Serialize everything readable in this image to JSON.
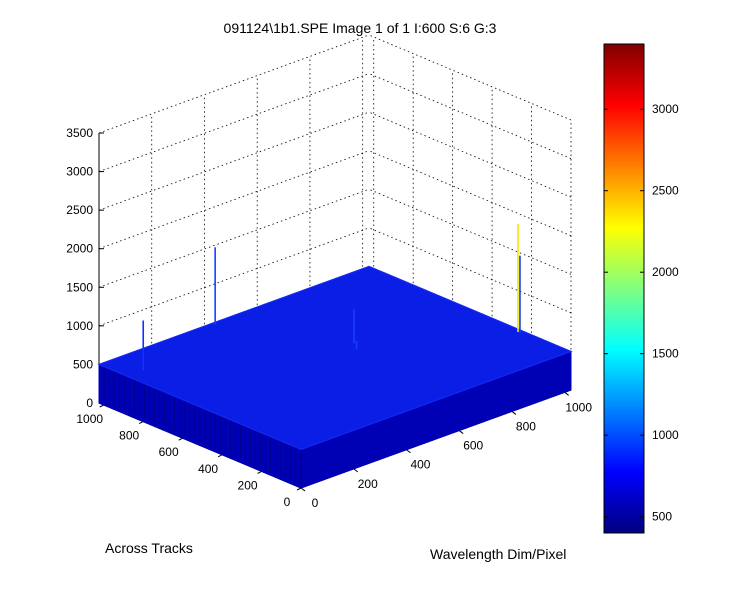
{
  "figure": {
    "background": "#ffffff"
  },
  "chart_data": {
    "type": "surface",
    "title": "091124\\1b1.SPE  Image 1 of 1  I:600  S:6  G:3",
    "xlabel": "Wavelength Dim/Pixel",
    "ylabel": "Across Tracks",
    "zlabel": "",
    "xlim": [
      0,
      1024
    ],
    "ylim": [
      0,
      1024
    ],
    "zlim": [
      0,
      3500
    ],
    "xticks": [
      0,
      200,
      400,
      600,
      800,
      1000
    ],
    "yticks": [
      0,
      200,
      400,
      600,
      800,
      1000
    ],
    "zticks": [
      0,
      500,
      1000,
      1500,
      2000,
      2500,
      3000,
      3500
    ],
    "surface": {
      "baseline_value": 500,
      "color": "#0a1ee6",
      "side_color": "#0000b4"
    },
    "spikes": [
      {
        "x": 60,
        "y": 880,
        "value": 1150,
        "color": "#1030ff"
      },
      {
        "x": 430,
        "y": 1010,
        "value": 1500,
        "color": "#1040ff"
      },
      {
        "x": 1010,
        "y": 250,
        "value": 1900,
        "color": "#f0e800"
      },
      {
        "x": 1010,
        "y": 240,
        "value": 1500,
        "color": "#1040ff"
      },
      {
        "x": 620,
        "y": 560,
        "value": 950,
        "color": "#1a3cff"
      },
      {
        "x": 600,
        "y": 520,
        "value": 600,
        "color": "#1a3cff"
      }
    ],
    "colorbar": {
      "min": 400,
      "max": 3400,
      "ticks": [
        500,
        1000,
        1500,
        2000,
        2500,
        3000
      ],
      "colormap": "jet"
    },
    "grid": true,
    "view": "3d-oblique"
  }
}
